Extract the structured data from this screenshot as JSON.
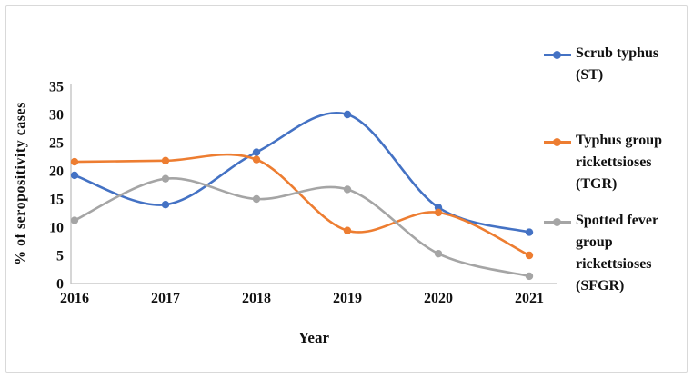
{
  "chart_data": {
    "type": "line",
    "title": "",
    "xlabel": "Year",
    "ylabel": "% of seropositivity cases",
    "x": [
      2016,
      2017,
      2018,
      2019,
      2020,
      2021
    ],
    "ylim": [
      0,
      35
    ],
    "yticks": [
      0,
      5,
      10,
      15,
      20,
      25,
      30,
      35
    ],
    "grid": false,
    "legend_position": "right",
    "line_style": "smooth",
    "series": [
      {
        "name": "Scrub typhus (ST)",
        "color": "#4472C4",
        "values": [
          19.2,
          14.0,
          23.3,
          30.0,
          13.5,
          9.1
        ]
      },
      {
        "name": "Typhus group rickettsioses (TGR)",
        "color": "#ED7D31",
        "values": [
          21.6,
          21.8,
          22.0,
          9.4,
          12.6,
          5.0
        ]
      },
      {
        "name": "Spotted fever group rickettsioses (SFGR)",
        "color": "#A5A5A5",
        "values": [
          11.2,
          18.6,
          15.0,
          16.7,
          5.3,
          1.3
        ]
      }
    ]
  },
  "colors": {
    "axis": "#BFBFBF",
    "text": "#111111",
    "frame_border": "#d9d9d9",
    "background": "#ffffff"
  }
}
